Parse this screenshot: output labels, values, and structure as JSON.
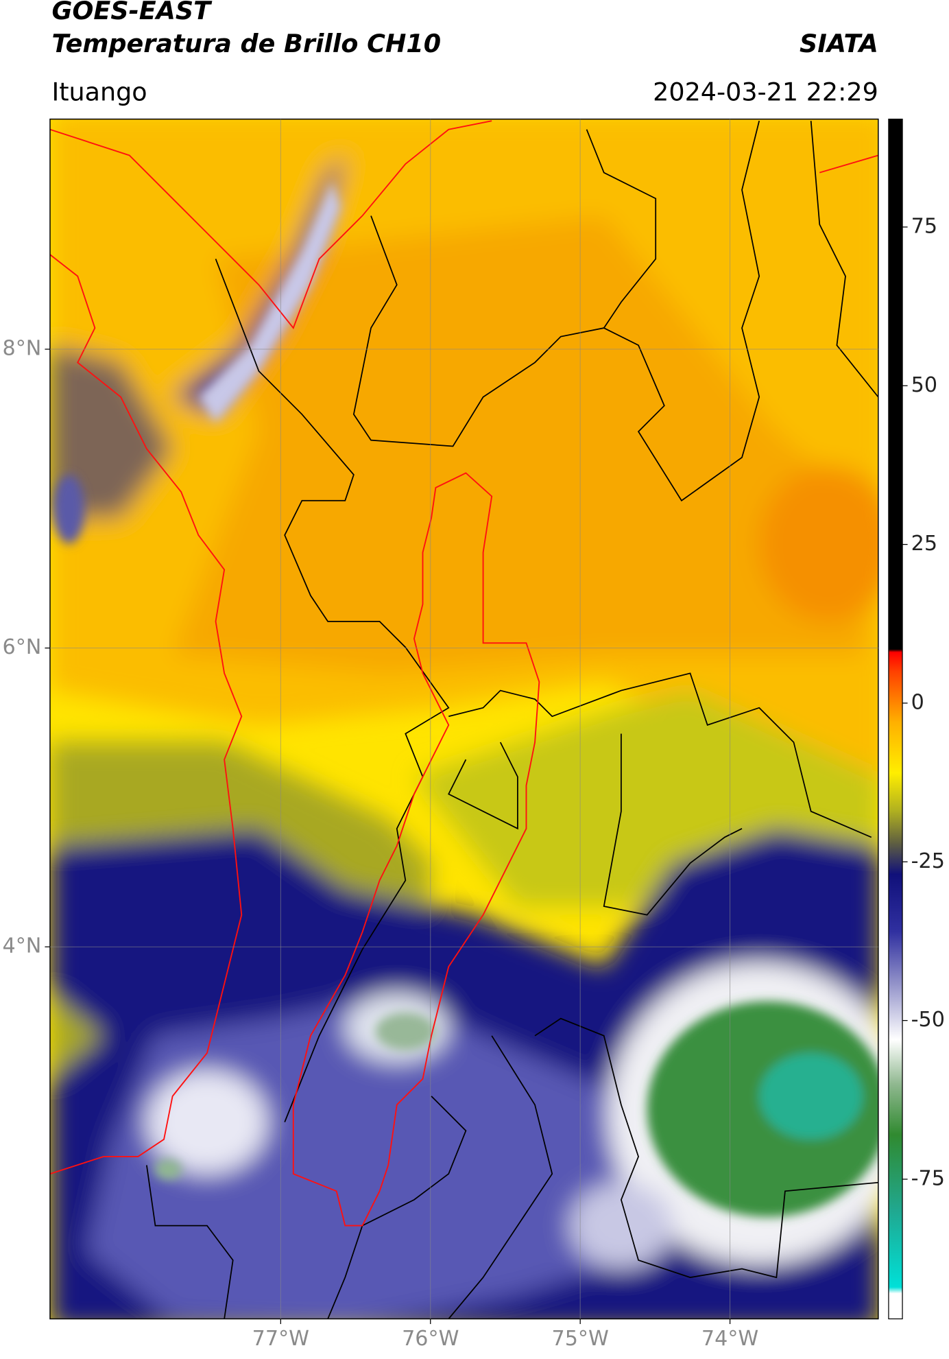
{
  "header": {
    "satellite": "GOES-EAST",
    "product": "Temperatura de Brillo CH10",
    "institution": "SIATA",
    "region": "Ituango",
    "datetime": "2024-03-21 22:29"
  },
  "map": {
    "xlim": [
      -78.54,
      -73.01
    ],
    "ylim": [
      1.51,
      9.54
    ],
    "xticks": [
      {
        "value": -77,
        "label": "77°W"
      },
      {
        "value": -76,
        "label": "76°W"
      },
      {
        "value": -75,
        "label": "75°W"
      },
      {
        "value": -74,
        "label": "74°W"
      }
    ],
    "yticks": [
      {
        "value": 8,
        "label": "8°N"
      },
      {
        "value": 6,
        "label": "6°N"
      },
      {
        "value": 4,
        "label": "4°N"
      }
    ],
    "grid": true
  },
  "colorbar": {
    "lim": [
      -97,
      92
    ],
    "ticks": [
      75,
      50,
      25,
      0,
      -25,
      -50,
      -75
    ],
    "colormap": [
      {
        "value": -97,
        "color": "#ffffff"
      },
      {
        "value": -93,
        "color": "#ffffff"
      },
      {
        "value": -92,
        "color": "#00e0d8"
      },
      {
        "value": -80,
        "color": "#20a890"
      },
      {
        "value": -68,
        "color": "#308a30"
      },
      {
        "value": -60,
        "color": "#90b890"
      },
      {
        "value": -53,
        "color": "#ffffff"
      },
      {
        "value": -44,
        "color": "#9090c8"
      },
      {
        "value": -36,
        "color": "#3030a0"
      },
      {
        "value": -27,
        "color": "#10107a"
      },
      {
        "value": -22,
        "color": "#606040"
      },
      {
        "value": -17,
        "color": "#b0b020"
      },
      {
        "value": -11,
        "color": "#ffee00"
      },
      {
        "value": -3,
        "color": "#ffb000"
      },
      {
        "value": 5,
        "color": "#ff4000"
      },
      {
        "value": 8,
        "color": "#ff0000"
      },
      {
        "value": 8.5,
        "color": "#000000"
      },
      {
        "value": 92,
        "color": "#000000"
      }
    ]
  }
}
